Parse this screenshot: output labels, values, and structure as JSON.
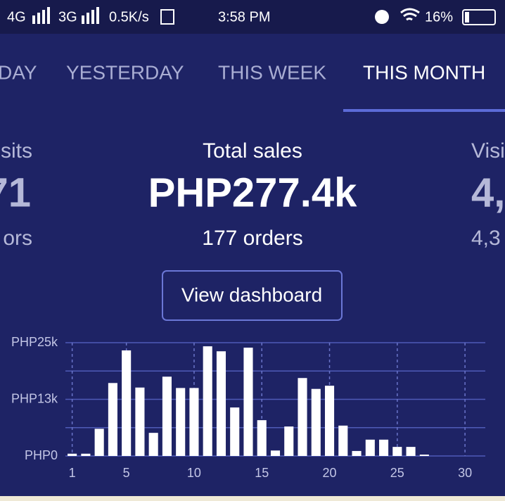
{
  "status_bar": {
    "network_1": "4G",
    "network_2": "3G",
    "speed": "0.5K/s",
    "time": "3:58 PM",
    "battery": "16%"
  },
  "tabs": [
    "DAY",
    "YESTERDAY",
    "THIS WEEK",
    "THIS MONTH"
  ],
  "cards": [
    {
      "title": "sits",
      "value": "71",
      "subtitle": "ors"
    },
    {
      "title": "Total sales",
      "value": "PHP277.4k",
      "subtitle": "177 orders"
    },
    {
      "title": "Visi",
      "value": "4,",
      "subtitle": "4,3"
    }
  ],
  "button": "View dashboard",
  "chart_data": {
    "type": "bar",
    "color": "#ffffff",
    "x": [
      1,
      2,
      3,
      4,
      5,
      6,
      7,
      8,
      9,
      10,
      11,
      12,
      13,
      14,
      15,
      16,
      17,
      18,
      19,
      20,
      21,
      22,
      23,
      24,
      25,
      26,
      27,
      28,
      29,
      30,
      31
    ],
    "values": [
      500,
      500,
      6000,
      16100,
      23300,
      15100,
      5100,
      17500,
      15000,
      15000,
      24200,
      23100,
      10700,
      23900,
      7900,
      1200,
      6500,
      17200,
      14800,
      15500,
      6700,
      1100,
      3600,
      3600,
      2000,
      2000,
      300,
      0,
      0,
      0,
      0
    ],
    "xlim": [
      0.5,
      31.5
    ],
    "xticks": [
      1,
      5,
      10,
      15,
      20,
      25,
      30
    ],
    "ylim": [
      0,
      25000
    ],
    "yticks": [
      {
        "value": 0,
        "label": "PHP0"
      },
      {
        "value": 12500,
        "label": "PHP13k"
      },
      {
        "value": 25000,
        "label": "PHP25k"
      }
    ],
    "minor_yticks": [
      6250,
      18750
    ],
    "grid": true
  }
}
